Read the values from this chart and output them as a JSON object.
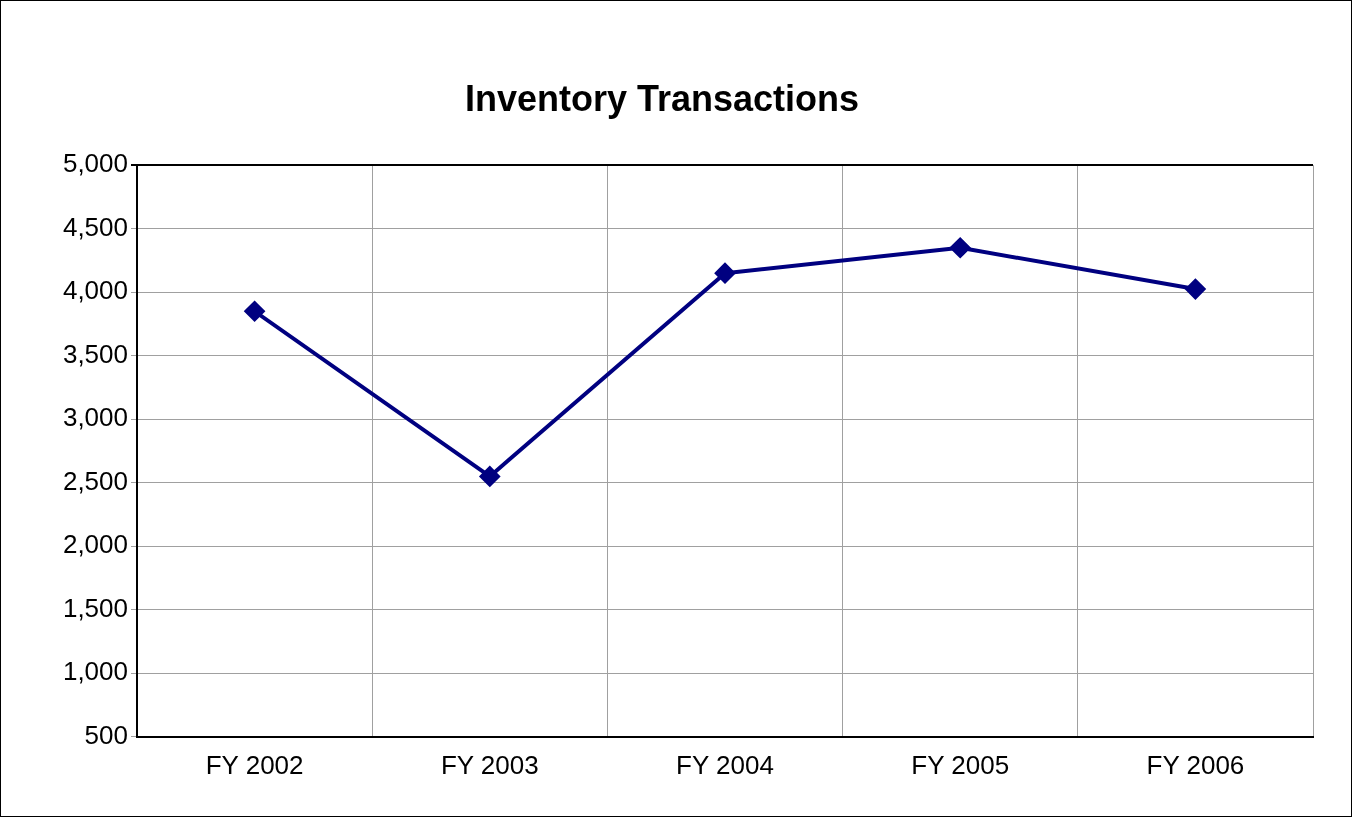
{
  "chart_data": {
    "type": "line",
    "title": "Inventory Transactions",
    "categories": [
      "FY 2002",
      "FY 2003",
      "FY 2004",
      "FY 2005",
      "FY 2006"
    ],
    "series": [
      {
        "color": "#000080",
        "values": [
          3850,
          2550,
          4150,
          4350,
          4025
        ]
      }
    ],
    "ylim": [
      500,
      5000
    ],
    "yticks": [
      {
        "value": 500,
        "label": "500"
      },
      {
        "value": 1000,
        "label": "1,000"
      },
      {
        "value": 1500,
        "label": "1,500"
      },
      {
        "value": 2000,
        "label": "2,000"
      },
      {
        "value": 2500,
        "label": "2,500"
      },
      {
        "value": 3000,
        "label": "3,000"
      },
      {
        "value": 3500,
        "label": "3,500"
      },
      {
        "value": 4000,
        "label": "4,000"
      },
      {
        "value": 4500,
        "label": "4,500"
      },
      {
        "value": 5000,
        "label": "5,000"
      }
    ],
    "grid": true,
    "marker": "diamond",
    "line_style": "solid"
  }
}
